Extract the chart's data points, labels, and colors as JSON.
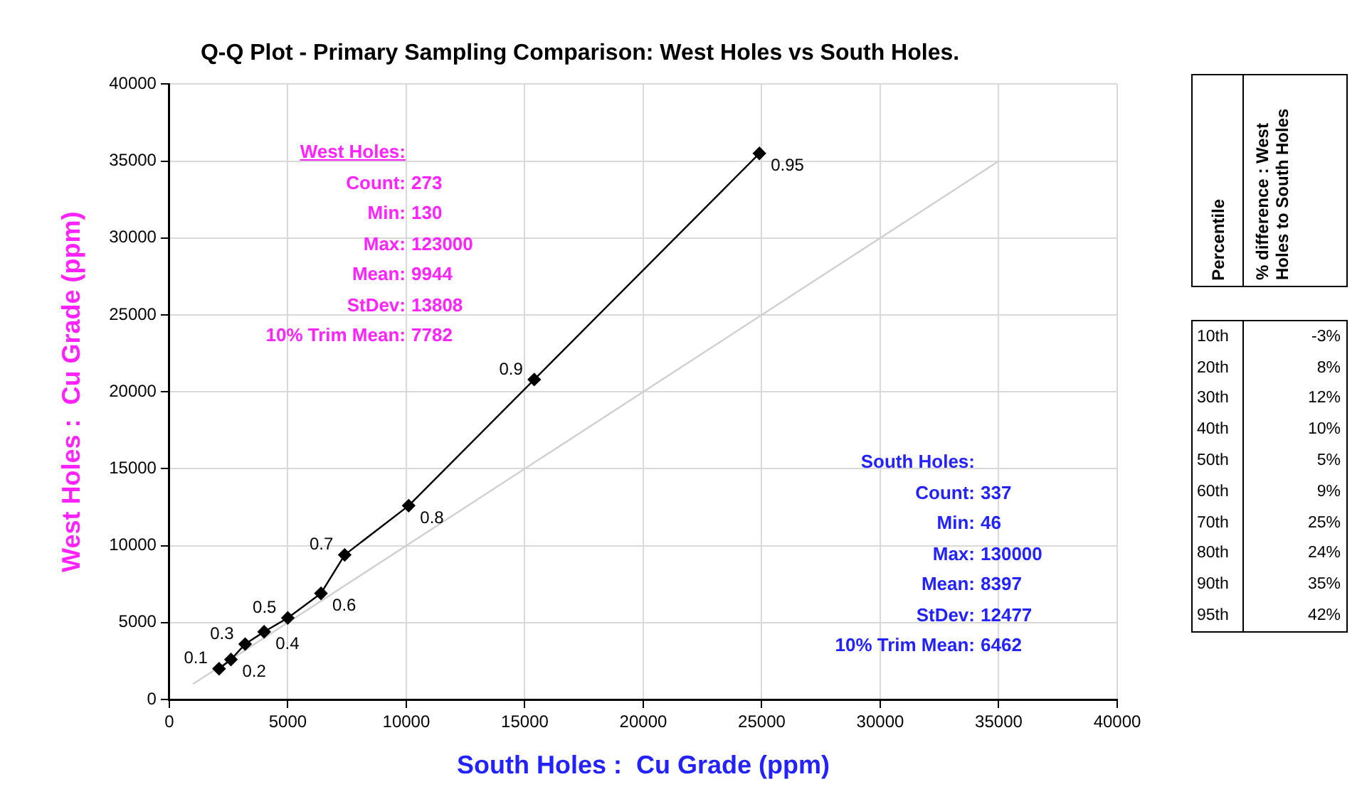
{
  "chart_data": {
    "type": "line",
    "title": "Q-Q Plot - Primary Sampling Comparison: West Holes vs South Holes.",
    "xlabel": "South Holes :  Cu Grade (ppm)",
    "ylabel": "West Holes :  Cu Grade (ppm)",
    "series": [
      {
        "color": "#000000",
        "marker": "diamond",
        "x": [
          2100,
          2600,
          3200,
          4000,
          5000,
          6400,
          7400,
          10100,
          15400,
          24900
        ],
        "values": [
          2000,
          2600,
          3600,
          4400,
          5300,
          6900,
          9400,
          12600,
          20800,
          35500
        ]
      },
      {
        "color": "#d0d0d0",
        "marker": "none",
        "x": [
          1000,
          35000
        ],
        "values": [
          1000,
          35000
        ]
      }
    ],
    "xlim": [
      0,
      40000
    ],
    "xticks": [
      0,
      5000,
      10000,
      15000,
      20000,
      25000,
      30000,
      35000,
      40000
    ],
    "ylim": [
      0,
      40000
    ],
    "yticks": [
      0,
      5000,
      10000,
      15000,
      20000,
      25000,
      30000,
      35000,
      40000
    ],
    "grid": true,
    "legend": false,
    "line_style": "solid",
    "annotations": [
      {
        "text": "0.1",
        "x": 2100,
        "y": 2000
      },
      {
        "text": "0.2",
        "x": 2600,
        "y": 2600
      },
      {
        "text": "0.3",
        "x": 3200,
        "y": 3600
      },
      {
        "text": "0.4",
        "x": 4000,
        "y": 4400
      },
      {
        "text": "0.5",
        "x": 5000,
        "y": 5300
      },
      {
        "text": "0.6",
        "x": 6400,
        "y": 6900
      },
      {
        "text": "0.7",
        "x": 7400,
        "y": 9400
      },
      {
        "text": "0.8",
        "x": 10100,
        "y": 12600
      },
      {
        "text": "0.9",
        "x": 15400,
        "y": 20800
      },
      {
        "text": "0.95",
        "x": 24900,
        "y": 35500
      },
      "West Holes:",
      "Count: 273",
      "Min: 130",
      "Max: 123000",
      "Mean: 9944",
      "StDev: 13808",
      "10% Trim Mean: 7782",
      "South Holes:",
      "Count: 337",
      "Min: 46",
      "Max: 130000",
      "Mean: 8397",
      "StDev: 12477",
      "10% Trim Mean: 6462",
      "Percentile",
      "% difference : West Holes to South Holes",
      "10th",
      "-3%",
      "20th",
      "8%",
      "30th",
      "12%",
      "40th",
      "10%",
      "50th",
      "5%",
      "60th",
      "9%",
      "70th",
      "25%",
      "80th",
      "24%",
      "90th",
      "35%",
      "95th",
      "42%"
    ]
  }
}
